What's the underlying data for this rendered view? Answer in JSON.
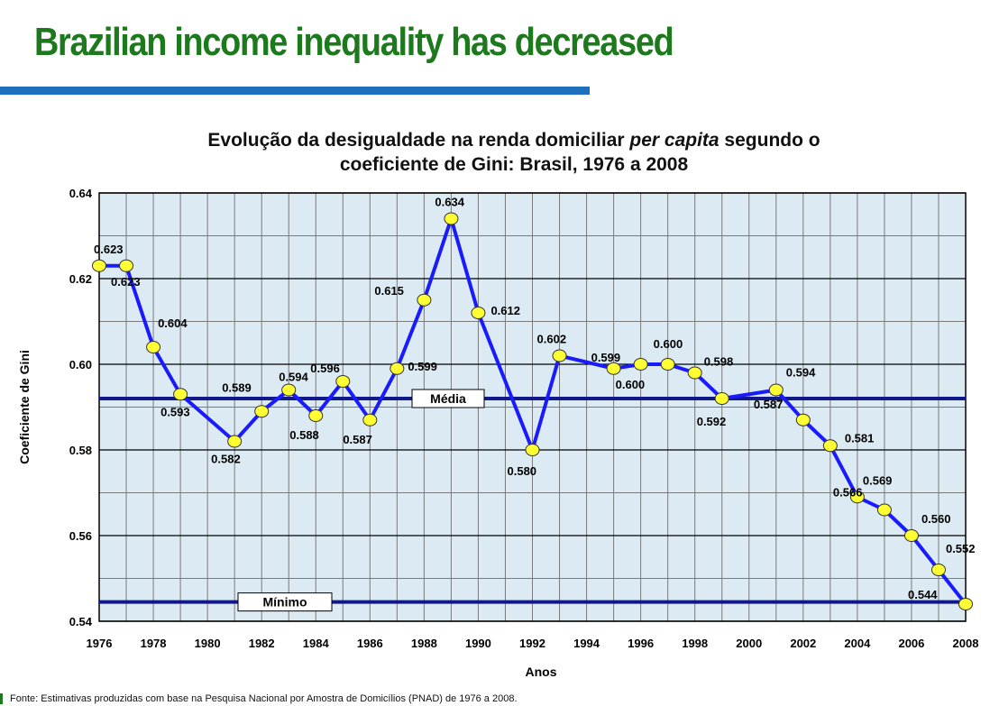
{
  "slide": {
    "title": "Brazilian income inequality has decreased",
    "source": "Fonte: Estimativas produzidas com base na Pesquisa Nacional por Amostra de Domicílios (PNAD) de 1976 a 2008."
  },
  "colors": {
    "title": "#1c7a1c",
    "rule": "#1f6fbf",
    "plot_bg": "#dbeaf3",
    "series": "#1a1aff",
    "marker": "#ffff33",
    "reference": "#10188a"
  },
  "chart_data": {
    "type": "line",
    "title_line1": "Evolução da desigualdade na renda domiciliar per capita segundo o",
    "title_line2": "coeficiente de Gini: Brasil, 1976 a 2008",
    "xlabel": "Anos",
    "ylabel": "Coeficiente de Gini",
    "xlim": [
      1976,
      2008
    ],
    "ylim": [
      0.54,
      0.64
    ],
    "x_ticks": [
      "1976",
      "1978",
      "1980",
      "1982",
      "1984",
      "1986",
      "1988",
      "1990",
      "1992",
      "1994",
      "1996",
      "1998",
      "2000",
      "2002",
      "2004",
      "2006",
      "2008"
    ],
    "y_ticks": [
      "0.54",
      "0.56",
      "0.58",
      "0.60",
      "0.62",
      "0.64"
    ],
    "grid": true,
    "series": [
      {
        "x": [
          1976,
          1977,
          1978,
          1979,
          1981,
          1982,
          1983,
          1984,
          1985,
          1986,
          1987,
          1988,
          1989,
          1990,
          1992,
          1993,
          1995,
          1996,
          1997,
          1998,
          1999,
          2001,
          2002,
          2003,
          2004,
          2005,
          2006,
          2007,
          2008
        ],
        "y": [
          0.623,
          0.623,
          0.604,
          0.593,
          0.582,
          0.589,
          0.594,
          0.588,
          0.596,
          0.587,
          0.599,
          0.615,
          0.634,
          0.612,
          0.58,
          0.602,
          0.599,
          0.6,
          0.6,
          0.598,
          0.592,
          0.594,
          0.587,
          0.581,
          0.569,
          0.566,
          0.56,
          0.552,
          0.544
        ],
        "labels": [
          "0.623",
          "0.623",
          "0.604",
          "0.593",
          "0.582",
          "0.589",
          "0.594",
          "0.588",
          "0.596",
          "0.587",
          "0.599",
          "0.615",
          "0.634",
          "0.612",
          "0.580",
          "0.602",
          "0.599",
          "0.600",
          "0.600",
          "0.598",
          "0.592",
          "0.594",
          "0.587",
          "0.581",
          "0.569",
          "0.566",
          "0.560",
          "0.552",
          "0.544"
        ]
      }
    ],
    "reference_lines": [
      {
        "label": "Média",
        "y": 0.592
      },
      {
        "label": "Mínimo",
        "y": 0.5445
      }
    ]
  }
}
